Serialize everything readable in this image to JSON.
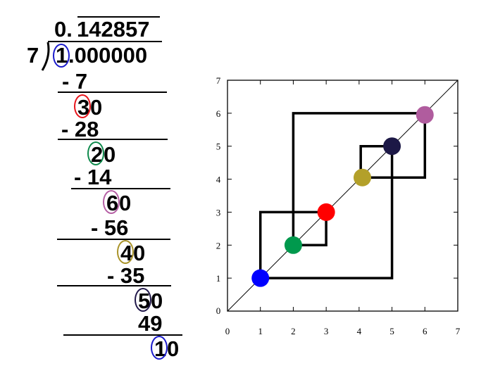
{
  "long_division": {
    "quotient_integer": "0.",
    "quotient_repeat": "142857",
    "divisor": "7",
    "dividend_first": "1",
    "dividend_rest": ".000000",
    "steps": [
      {
        "subtract": "- 7",
        "remainder_digit": "3",
        "remainder_rest": "0",
        "ring_color": "#e8141b"
      },
      {
        "subtract": "- 28",
        "remainder_digit": "2",
        "remainder_rest": "0",
        "ring_color": "#0e8a4c"
      },
      {
        "subtract": "- 14",
        "remainder_digit": "6",
        "remainder_rest": "0",
        "ring_color": "#b55ea4"
      },
      {
        "subtract": "- 56",
        "remainder_digit": "4",
        "remainder_rest": "0",
        "ring_color": "#a99329"
      },
      {
        "subtract": "- 35",
        "remainder_digit": "5",
        "remainder_rest": "0",
        "ring_color": "#21184a"
      },
      {
        "subtract": "49",
        "remainder_digit": "1",
        "remainder_rest": "0",
        "ring_color": "#1a1acc"
      }
    ],
    "first_ring_color": "#1a1acc"
  },
  "plot": {
    "x_range": [
      0,
      7
    ],
    "y_range": [
      0,
      7
    ],
    "ticks": [
      "0",
      "1",
      "2",
      "3",
      "4",
      "5",
      "6",
      "7"
    ],
    "diagonal": {
      "from": [
        0,
        0
      ],
      "to": [
        7,
        7
      ]
    },
    "points": [
      {
        "x": 1,
        "y": 1,
        "color": "#0000ff"
      },
      {
        "x": 2,
        "y": 2,
        "color": "#00994d"
      },
      {
        "x": 3,
        "y": 3,
        "color": "#ff0000"
      },
      {
        "x": 4.1,
        "y": 4.05,
        "color": "#b3a02a"
      },
      {
        "x": 5,
        "y": 5,
        "color": "#1c1846"
      },
      {
        "x": 6,
        "y": 5.95,
        "color": "#b05c9e"
      }
    ],
    "cobweb_path": [
      [
        1,
        1
      ],
      [
        5,
        1
      ],
      [
        5,
        5
      ],
      [
        4.05,
        5
      ],
      [
        4.05,
        4.05
      ],
      [
        6,
        4.05
      ],
      [
        6,
        6
      ],
      [
        2,
        6
      ],
      [
        2,
        2
      ],
      [
        3,
        2
      ],
      [
        3,
        3
      ],
      [
        1,
        3
      ],
      [
        1,
        1
      ]
    ]
  }
}
